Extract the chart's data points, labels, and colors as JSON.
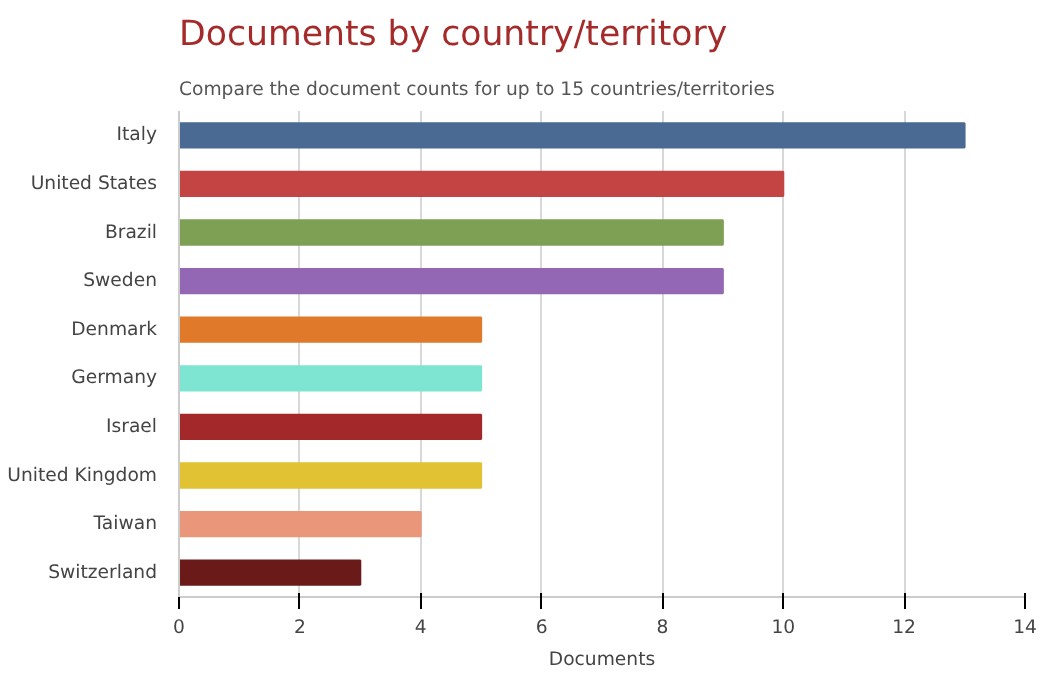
{
  "chart_data": {
    "type": "bar",
    "orientation": "horizontal",
    "title": "Documents by country/territory",
    "subtitle": "Compare the document counts for up to 15 countries/territories",
    "xlabel": "Documents",
    "categories": [
      "Italy",
      "United States",
      "Brazil",
      "Sweden",
      "Denmark",
      "Germany",
      "Israel",
      "United Kingdom",
      "Taiwan",
      "Switzerland"
    ],
    "values": [
      13,
      10,
      9,
      9,
      5,
      5,
      5,
      5,
      4,
      3
    ],
    "colors": [
      "#4a6a94",
      "#c44444",
      "#7da055",
      "#9467b5",
      "#e07a2a",
      "#7de5d2",
      "#a3282a",
      "#e0c232",
      "#ea967a",
      "#6b1a1a"
    ],
    "xlim": [
      0,
      14
    ],
    "xticks": [
      0,
      2,
      4,
      6,
      8,
      10,
      12,
      14
    ],
    "grid": "x"
  }
}
